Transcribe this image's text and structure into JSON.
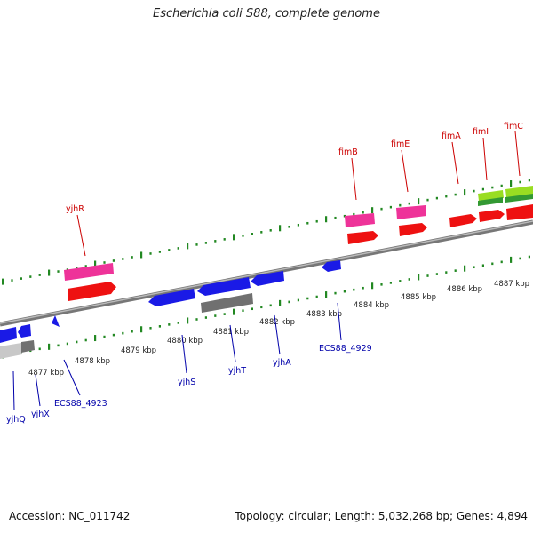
{
  "title": "Escherichia coli S88, complete genome",
  "footer": {
    "accession": "Accession: NC_011742",
    "summary": "Topology: circular; Length: 5,032,268 bp; Genes: 4,894"
  },
  "colors": {
    "forward_label": "#cc0000",
    "reverse_label": "#0000aa",
    "gene_red": "#ee1111",
    "gene_pink": "#ee3399",
    "gene_blue": "#1a1ae6",
    "gene_gray": "#707070",
    "gene_lightgray": "#c8c8c8",
    "gene_lime": "#99dd22",
    "gene_green": "#339933",
    "tick": "#228822",
    "backbone": "#888888"
  },
  "scale": {
    "labels": [
      "4877 kbp",
      "4878 kbp",
      "4879 kbp",
      "4880 kbp",
      "4881 kbp",
      "4882 kbp",
      "4883 kbp",
      "4884 kbp",
      "4885 kbp",
      "4886 kbp",
      "4887 kbp"
    ]
  },
  "forward_labels": [
    "yjhR",
    "fimB",
    "fimE",
    "fimA",
    "fimI",
    "fimC"
  ],
  "reverse_labels": [
    "yjhQ",
    "yjhX",
    "ECS88_4923",
    "yjhS",
    "yjhT",
    "yjhA",
    "ECS88_4929"
  ]
}
